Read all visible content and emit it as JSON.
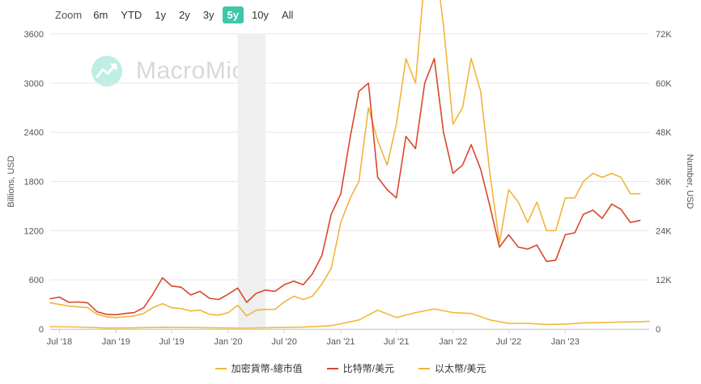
{
  "zoom": {
    "label": "Zoom",
    "buttons": [
      "6m",
      "YTD",
      "1y",
      "2y",
      "3y",
      "5y",
      "10y",
      "All"
    ],
    "active": "5y"
  },
  "watermark": "MacroMicro",
  "colors": {
    "total_mcap": "#f0bb3b",
    "btc": "#d9472b",
    "eth": "#f2b43c",
    "active_zoom": "#3ec6a8",
    "shading": "#efefef"
  },
  "chart_data": {
    "type": "line",
    "title": "",
    "ylabel_left": "Billions, USD",
    "ylabel_right": "Number, USD",
    "ylim_left": [
      0,
      3600
    ],
    "ylim_right": [
      0,
      72000
    ],
    "yticks_left": [
      "0",
      "600",
      "1200",
      "1800",
      "2400",
      "3000",
      "3600"
    ],
    "yticks_right": [
      "0",
      "12K",
      "24K",
      "36K",
      "48K",
      "60K",
      "72K"
    ],
    "xlim": [
      "2018-06-01",
      "2023-10-01"
    ],
    "xticks": [
      "Jul '18",
      "Jan '19",
      "Jul '19",
      "Jan '20",
      "Jul '20",
      "Jan '21",
      "Jul '21",
      "Jan '22",
      "Jul '22",
      "Jan '23"
    ],
    "shaded_range": [
      "2020-02-01",
      "2020-05-01"
    ],
    "legend_position": "bottom-center",
    "grid": true,
    "series": [
      {
        "name": "加密貨幣-總市值",
        "axis": "left",
        "color": "#f0bb3b",
        "points": [
          [
            "2018-06-01",
            30
          ],
          [
            "2018-09-01",
            25
          ],
          [
            "2018-12-01",
            12
          ],
          [
            "2019-03-01",
            14
          ],
          [
            "2019-06-01",
            22
          ],
          [
            "2019-09-01",
            18
          ],
          [
            "2019-12-01",
            14
          ],
          [
            "2020-03-01",
            10
          ],
          [
            "2020-06-01",
            18
          ],
          [
            "2020-09-01",
            24
          ],
          [
            "2020-12-01",
            40
          ],
          [
            "2021-03-01",
            110
          ],
          [
            "2021-05-01",
            230
          ],
          [
            "2021-07-01",
            140
          ],
          [
            "2021-09-01",
            200
          ],
          [
            "2021-11-01",
            245
          ],
          [
            "2022-01-01",
            200
          ],
          [
            "2022-03-01",
            190
          ],
          [
            "2022-05-01",
            110
          ],
          [
            "2022-07-01",
            70
          ],
          [
            "2022-09-01",
            70
          ],
          [
            "2022-11-01",
            55
          ],
          [
            "2023-01-01",
            60
          ],
          [
            "2023-03-01",
            75
          ],
          [
            "2023-05-01",
            80
          ],
          [
            "2023-07-01",
            85
          ],
          [
            "2023-09-01",
            90
          ],
          [
            "2023-10-01",
            95
          ]
        ]
      },
      {
        "name": "比特幣/美元",
        "axis": "right",
        "color": "#d9472b",
        "points": [
          [
            "2018-06-01",
            7400
          ],
          [
            "2018-07-01",
            7800
          ],
          [
            "2018-08-01",
            6500
          ],
          [
            "2018-09-01",
            6600
          ],
          [
            "2018-10-01",
            6400
          ],
          [
            "2018-11-01",
            4200
          ],
          [
            "2018-12-01",
            3600
          ],
          [
            "2019-01-01",
            3500
          ],
          [
            "2019-02-01",
            3800
          ],
          [
            "2019-03-01",
            4000
          ],
          [
            "2019-04-01",
            5200
          ],
          [
            "2019-05-01",
            8500
          ],
          [
            "2019-06-01",
            12500
          ],
          [
            "2019-07-01",
            10500
          ],
          [
            "2019-08-01",
            10200
          ],
          [
            "2019-09-01",
            8300
          ],
          [
            "2019-10-01",
            9200
          ],
          [
            "2019-11-01",
            7500
          ],
          [
            "2019-12-01",
            7200
          ],
          [
            "2020-01-01",
            8500
          ],
          [
            "2020-02-01",
            10000
          ],
          [
            "2020-03-01",
            6500
          ],
          [
            "2020-04-01",
            8700
          ],
          [
            "2020-05-01",
            9500
          ],
          [
            "2020-06-01",
            9200
          ],
          [
            "2020-07-01",
            10800
          ],
          [
            "2020-08-01",
            11700
          ],
          [
            "2020-09-01",
            10800
          ],
          [
            "2020-10-01",
            13500
          ],
          [
            "2020-11-01",
            18000
          ],
          [
            "2020-12-01",
            28000
          ],
          [
            "2021-01-01",
            33000
          ],
          [
            "2021-02-01",
            47000
          ],
          [
            "2021-03-01",
            58000
          ],
          [
            "2021-04-01",
            60000
          ],
          [
            "2021-05-01",
            37000
          ],
          [
            "2021-06-01",
            34000
          ],
          [
            "2021-07-01",
            32000
          ],
          [
            "2021-08-01",
            47000
          ],
          [
            "2021-09-01",
            44000
          ],
          [
            "2021-10-01",
            60000
          ],
          [
            "2021-11-01",
            66000
          ],
          [
            "2021-12-01",
            48000
          ],
          [
            "2022-01-01",
            38000
          ],
          [
            "2022-02-01",
            40000
          ],
          [
            "2022-03-01",
            45000
          ],
          [
            "2022-04-01",
            39000
          ],
          [
            "2022-05-01",
            30000
          ],
          [
            "2022-06-01",
            20000
          ],
          [
            "2022-07-01",
            23000
          ],
          [
            "2022-08-01",
            20000
          ],
          [
            "2022-09-01",
            19500
          ],
          [
            "2022-10-01",
            20500
          ],
          [
            "2022-11-01",
            16500
          ],
          [
            "2022-12-01",
            16800
          ],
          [
            "2023-01-01",
            23000
          ],
          [
            "2023-02-01",
            23500
          ],
          [
            "2023-03-01",
            28000
          ],
          [
            "2023-04-01",
            29000
          ],
          [
            "2023-05-01",
            27000
          ],
          [
            "2023-06-01",
            30500
          ],
          [
            "2023-07-01",
            29200
          ],
          [
            "2023-08-01",
            26000
          ],
          [
            "2023-09-01",
            26500
          ]
        ]
      },
      {
        "name": "以太幣/美元",
        "axis": "left",
        "color": "#f2b43c",
        "points": [
          [
            "2018-06-01",
            320
          ],
          [
            "2018-07-01",
            300
          ],
          [
            "2018-08-01",
            280
          ],
          [
            "2018-09-01",
            270
          ],
          [
            "2018-10-01",
            260
          ],
          [
            "2018-11-01",
            180
          ],
          [
            "2018-12-01",
            150
          ],
          [
            "2019-01-01",
            140
          ],
          [
            "2019-02-01",
            150
          ],
          [
            "2019-03-01",
            160
          ],
          [
            "2019-04-01",
            190
          ],
          [
            "2019-05-01",
            260
          ],
          [
            "2019-06-01",
            310
          ],
          [
            "2019-07-01",
            260
          ],
          [
            "2019-08-01",
            250
          ],
          [
            "2019-09-01",
            220
          ],
          [
            "2019-10-01",
            230
          ],
          [
            "2019-11-01",
            180
          ],
          [
            "2019-12-01",
            170
          ],
          [
            "2020-01-01",
            200
          ],
          [
            "2020-02-01",
            290
          ],
          [
            "2020-03-01",
            160
          ],
          [
            "2020-04-01",
            230
          ],
          [
            "2020-05-01",
            240
          ],
          [
            "2020-06-01",
            240
          ],
          [
            "2020-07-01",
            330
          ],
          [
            "2020-08-01",
            400
          ],
          [
            "2020-09-01",
            360
          ],
          [
            "2020-10-01",
            400
          ],
          [
            "2020-11-01",
            550
          ],
          [
            "2020-12-01",
            740
          ],
          [
            "2021-01-01",
            1300
          ],
          [
            "2021-02-01",
            1600
          ],
          [
            "2021-03-01",
            1800
          ],
          [
            "2021-04-01",
            2700
          ],
          [
            "2021-05-01",
            2300
          ],
          [
            "2021-06-01",
            2000
          ],
          [
            "2021-07-01",
            2500
          ],
          [
            "2021-08-01",
            3300
          ],
          [
            "2021-09-01",
            3000
          ],
          [
            "2021-10-01",
            4300
          ],
          [
            "2021-11-01",
            4600
          ],
          [
            "2021-12-01",
            3700
          ],
          [
            "2022-01-01",
            2500
          ],
          [
            "2022-02-01",
            2700
          ],
          [
            "2022-03-01",
            3300
          ],
          [
            "2022-04-01",
            2900
          ],
          [
            "2022-05-01",
            1900
          ],
          [
            "2022-06-01",
            1050
          ],
          [
            "2022-07-01",
            1700
          ],
          [
            "2022-08-01",
            1550
          ],
          [
            "2022-09-01",
            1300
          ],
          [
            "2022-10-01",
            1550
          ],
          [
            "2022-11-01",
            1200
          ],
          [
            "2022-12-01",
            1200
          ],
          [
            "2023-01-01",
            1600
          ],
          [
            "2023-02-01",
            1600
          ],
          [
            "2023-03-01",
            1800
          ],
          [
            "2023-04-01",
            1900
          ],
          [
            "2023-05-01",
            1850
          ],
          [
            "2023-06-01",
            1900
          ],
          [
            "2023-07-01",
            1850
          ],
          [
            "2023-08-01",
            1650
          ],
          [
            "2023-09-01",
            1650
          ]
        ]
      }
    ]
  }
}
